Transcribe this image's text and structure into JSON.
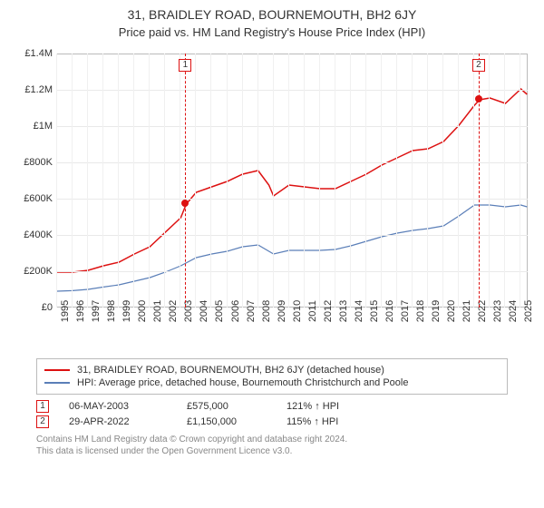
{
  "title": "31, BRAIDLEY ROAD, BOURNEMOUTH, BH2 6JY",
  "subtitle": "Price paid vs. HM Land Registry's House Price Index (HPI)",
  "chart": {
    "type": "line",
    "background_color": "#ffffff",
    "grid_color": "#e9e9e9",
    "border_color": "#bbbbbb",
    "x": {
      "min": 1995,
      "max": 2025.5,
      "ticks": [
        1995,
        1996,
        1997,
        1998,
        1999,
        2000,
        2001,
        2002,
        2003,
        2004,
        2005,
        2006,
        2007,
        2008,
        2009,
        2010,
        2011,
        2012,
        2013,
        2014,
        2015,
        2016,
        2017,
        2018,
        2019,
        2020,
        2021,
        2022,
        2023,
        2024,
        2025
      ],
      "tick_labels": [
        "1995",
        "1996",
        "1997",
        "1998",
        "1999",
        "2000",
        "2001",
        "2002",
        "2003",
        "2004",
        "2005",
        "2006",
        "2007",
        "2008",
        "2009",
        "2010",
        "2011",
        "2012",
        "2013",
        "2014",
        "2015",
        "2016",
        "2017",
        "2018",
        "2019",
        "2020",
        "2021",
        "2022",
        "2023",
        "2024",
        "2025"
      ],
      "label_fontsize": 11
    },
    "y": {
      "min": 0,
      "max": 1400000,
      "ticks": [
        0,
        200000,
        400000,
        600000,
        800000,
        1000000,
        1200000,
        1400000
      ],
      "tick_labels": [
        "£0",
        "£200K",
        "£400K",
        "£600K",
        "£800K",
        "£1M",
        "£1.2M",
        "£1.4M"
      ],
      "label_fontsize": 11
    },
    "series": [
      {
        "id": "property",
        "label": "31, BRAIDLEY ROAD, BOURNEMOUTH, BH2 6JY (detached house)",
        "color": "#dd1111",
        "line_width": 1.5,
        "x": [
          1995,
          1996,
          1997,
          1998,
          1999,
          2000,
          2001,
          2002,
          2003,
          2003.35,
          2004,
          2005,
          2006,
          2007,
          2008,
          2008.7,
          2009,
          2010,
          2011,
          2012,
          2013,
          2014,
          2015,
          2016,
          2017,
          2018,
          2019,
          2020,
          2021,
          2022,
          2022.33,
          2023,
          2024,
          2025,
          2025.4
        ],
        "y": [
          200000,
          200000,
          210000,
          235000,
          255000,
          300000,
          340000,
          420000,
          500000,
          575000,
          640000,
          670000,
          700000,
          740000,
          760000,
          680000,
          620000,
          680000,
          670000,
          660000,
          660000,
          700000,
          740000,
          790000,
          830000,
          870000,
          880000,
          920000,
          1010000,
          1120000,
          1150000,
          1160000,
          1130000,
          1210000,
          1180000
        ]
      },
      {
        "id": "hpi",
        "label": "HPI: Average price, detached house, Bournemouth Christchurch and Poole",
        "color": "#5b7fb8",
        "line_width": 1.2,
        "x": [
          1995,
          1996,
          1997,
          1998,
          1999,
          2000,
          2001,
          2002,
          2003,
          2004,
          2005,
          2006,
          2007,
          2008,
          2009,
          2010,
          2011,
          2012,
          2013,
          2014,
          2015,
          2016,
          2017,
          2018,
          2019,
          2020,
          2021,
          2022,
          2023,
          2024,
          2025,
          2025.4
        ],
        "y": [
          95000,
          98000,
          105000,
          118000,
          130000,
          150000,
          170000,
          200000,
          235000,
          280000,
          300000,
          315000,
          340000,
          350000,
          300000,
          320000,
          320000,
          320000,
          325000,
          345000,
          370000,
          395000,
          415000,
          430000,
          440000,
          455000,
          510000,
          570000,
          570000,
          560000,
          570000,
          560000
        ]
      }
    ],
    "sale_markers": [
      {
        "num": "1",
        "x": 2003.35,
        "y": 575000,
        "color": "#dd1111"
      },
      {
        "num": "2",
        "x": 2022.33,
        "y": 1150000,
        "color": "#dd1111"
      }
    ]
  },
  "legend": {
    "border_color": "#bbbbbb"
  },
  "sales": [
    {
      "num": "1",
      "border_color": "#dd1111",
      "date": "06-MAY-2003",
      "price": "£575,000",
      "hpi_pct": "121% ↑ HPI"
    },
    {
      "num": "2",
      "border_color": "#dd1111",
      "date": "29-APR-2022",
      "price": "£1,150,000",
      "hpi_pct": "115% ↑ HPI"
    }
  ],
  "footer": {
    "line1": "Contains HM Land Registry data © Crown copyright and database right 2024.",
    "line2": "This data is licensed under the Open Government Licence v3.0."
  }
}
